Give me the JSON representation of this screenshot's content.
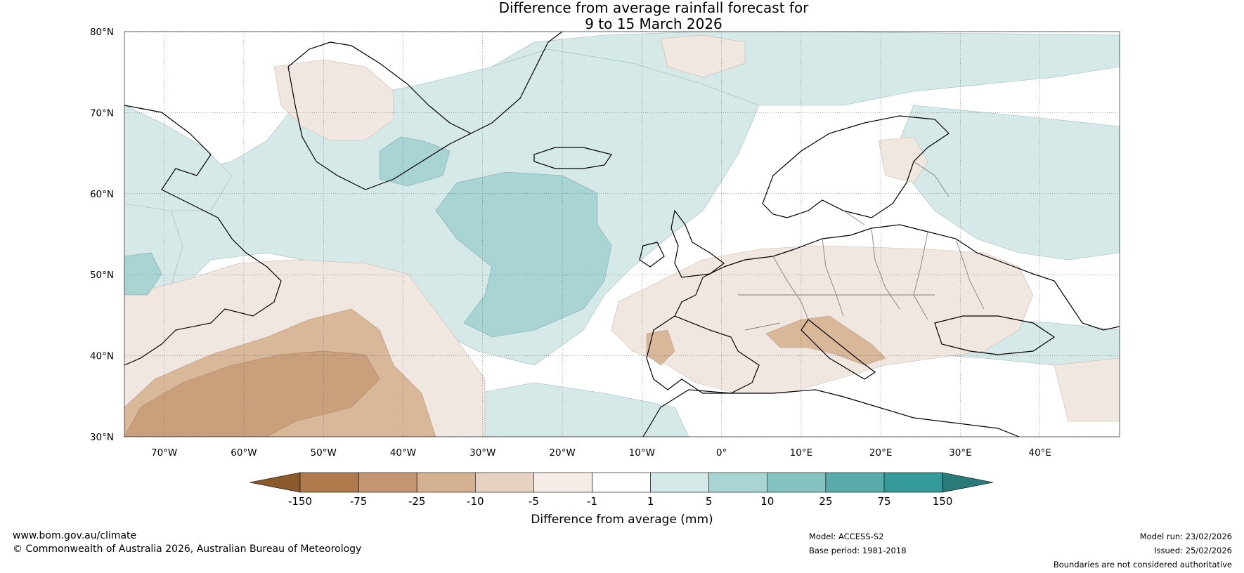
{
  "title": {
    "line1": "Difference from average rainfall forecast for",
    "line2": "9 to 15 March 2026"
  },
  "map": {
    "lat_range": [
      30,
      80
    ],
    "lon_range": [
      -75,
      50
    ],
    "lat_labels": [
      "30°N",
      "40°N",
      "50°N",
      "60°N",
      "70°N",
      "80°N"
    ],
    "lon_labels": [
      "70°W",
      "60°W",
      "50°W",
      "40°W",
      "30°W",
      "20°W",
      "10°W",
      "0°",
      "10°E",
      "20°E",
      "30°E",
      "40°E"
    ]
  },
  "colorbar": {
    "label": "Difference from average (mm)",
    "ticks": [
      "-150",
      "-75",
      "-25",
      "-10",
      "-5",
      "-1",
      "1",
      "5",
      "10",
      "25",
      "75",
      "150"
    ],
    "colors": [
      "#a5652f",
      "#b07a4c",
      "#c39570",
      "#d3b191",
      "#e6d2c2",
      "#f4ede8",
      "#ffffff",
      "#d5e9e8",
      "#a9d4d4",
      "#85c3c3",
      "#5aacac",
      "#339999",
      "#2b7a7a"
    ],
    "under_color": "#8b5a2b",
    "over_color": "#2b7a7a"
  },
  "legend_bins": {
    "dry_strong": "#c9a07b",
    "dry_moderate": "#d8b898",
    "dry_light": "#f1e7e1",
    "wet_light": "#d5e9e8",
    "wet_moderate": "#a9d4d4"
  },
  "footer": {
    "website": "www.bom.gov.au/climate",
    "copyright": "© Commonwealth of Australia 2026, Australian Bureau of Meteorology",
    "model": "Model: ACCESS-S2",
    "base_period": "Base period: 1981-2018",
    "model_run": "Model run: 23/02/2026",
    "issued": "Issued: 25/02/2026",
    "disclaimer": "Boundaries are not considered authoritative"
  }
}
